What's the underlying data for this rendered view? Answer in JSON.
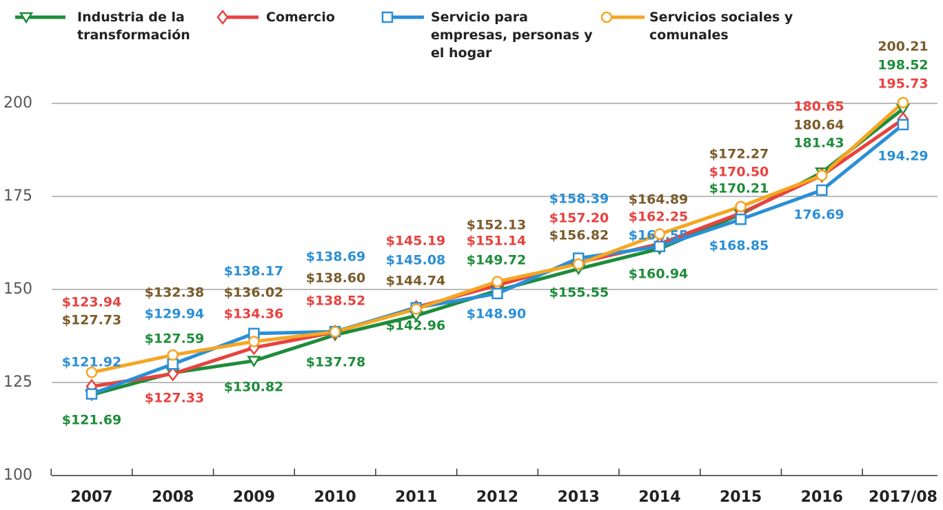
{
  "chart_data": {
    "type": "line",
    "categories": [
      "2007",
      "2008",
      "2009",
      "2010",
      "2011",
      "2012",
      "2013",
      "2014",
      "2015",
      "2016",
      "2017/08"
    ],
    "ylim": [
      100,
      200
    ],
    "yticks": [
      100,
      125,
      150,
      175,
      200
    ],
    "grid": true,
    "series": [
      {
        "name": "Industria de la transformación",
        "color": "#1e8c3a",
        "marker": "triangle-down",
        "label_color": "#1e8c3a",
        "values": [
          121.69,
          127.59,
          130.82,
          137.78,
          142.96,
          149.72,
          155.55,
          160.94,
          170.21,
          181.43,
          198.52
        ],
        "value_labels": [
          "$121.69",
          "$127.59",
          "$130.82",
          "$137.78",
          "$142.96",
          "$149.72",
          "$155.55",
          "$160.94",
          "$170.21",
          "181.43",
          "198.52"
        ]
      },
      {
        "name": "Comercio",
        "color": "#e8423f",
        "marker": "diamond",
        "label_color": "#e8423f",
        "values": [
          123.94,
          127.33,
          134.36,
          138.52,
          145.19,
          151.14,
          157.2,
          162.25,
          170.5,
          180.65,
          195.73
        ],
        "value_labels": [
          "$123.94",
          "$127.33",
          "$134.36",
          "$138.52",
          "$145.19",
          "$151.14",
          "$157.20",
          "$162.25",
          "$170.50",
          "180.65",
          "195.73"
        ]
      },
      {
        "name": "Servicio para empresas, personas y el hogar",
        "color": "#2b8fd6",
        "marker": "square",
        "label_color": "#2b8fd6",
        "values": [
          121.92,
          129.94,
          138.17,
          138.69,
          145.08,
          148.9,
          158.39,
          161.55,
          168.85,
          176.69,
          194.29
        ],
        "value_labels": [
          "$121.92",
          "$129.94",
          "$138.17",
          "$138.69",
          "$145.08",
          "$148.90",
          "$158.39",
          "$161.55",
          "$168.85",
          "176.69",
          "194.29"
        ]
      },
      {
        "name": "Servicios sociales y comunales",
        "color": "#f5a623",
        "marker": "circle",
        "label_color": "#7b5b2b",
        "values": [
          127.73,
          132.38,
          136.02,
          138.6,
          144.74,
          152.13,
          156.82,
          164.89,
          172.27,
          180.64,
          200.21
        ],
        "value_labels": [
          "$127.73",
          "$132.38",
          "$136.02",
          "$138.60",
          "$144.74",
          "$152.13",
          "$156.82",
          "$164.89",
          "$172.27",
          "180.64",
          "200.21"
        ]
      }
    ]
  }
}
